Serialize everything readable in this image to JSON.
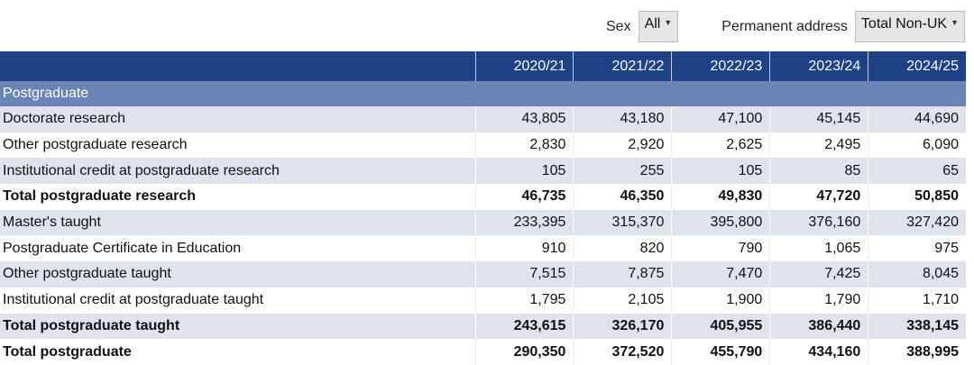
{
  "filters": {
    "sex": {
      "label": "Sex",
      "value": "All"
    },
    "permanent_address": {
      "label": "Permanent address",
      "value": "Total Non-UK"
    }
  },
  "table": {
    "columns": [
      "2020/21",
      "2021/22",
      "2022/23",
      "2023/24",
      "2024/25"
    ],
    "section": "Postgraduate",
    "rows": [
      {
        "label": "Doctorate research",
        "values": [
          "43,805",
          "43,180",
          "47,100",
          "45,145",
          "44,690"
        ],
        "bold": false
      },
      {
        "label": "Other postgraduate research",
        "values": [
          "2,830",
          "2,920",
          "2,625",
          "2,495",
          "6,090"
        ],
        "bold": false
      },
      {
        "label": "Institutional credit at postgraduate research",
        "values": [
          "105",
          "255",
          "105",
          "85",
          "65"
        ],
        "bold": false
      },
      {
        "label": "Total postgraduate research",
        "values": [
          "46,735",
          "46,350",
          "49,830",
          "47,720",
          "50,850"
        ],
        "bold": true
      },
      {
        "label": "Master's taught",
        "values": [
          "233,395",
          "315,370",
          "395,800",
          "376,160",
          "327,420"
        ],
        "bold": false
      },
      {
        "label": "Postgraduate Certificate in Education",
        "values": [
          "910",
          "820",
          "790",
          "1,065",
          "975"
        ],
        "bold": false
      },
      {
        "label": "Other postgraduate taught",
        "values": [
          "7,515",
          "7,875",
          "7,470",
          "7,425",
          "8,045"
        ],
        "bold": false
      },
      {
        "label": "Institutional credit at postgraduate taught",
        "values": [
          "1,795",
          "2,105",
          "1,900",
          "1,790",
          "1,710"
        ],
        "bold": false
      },
      {
        "label": "Total postgraduate taught",
        "values": [
          "243,615",
          "326,170",
          "405,955",
          "386,440",
          "338,145"
        ],
        "bold": true
      },
      {
        "label": "Total postgraduate",
        "values": [
          "290,350",
          "372,520",
          "455,790",
          "434,160",
          "388,995"
        ],
        "bold": true
      }
    ]
  },
  "colors": {
    "header": "#1f4287",
    "section": "#6a84b6",
    "shade": "#dfe3ec"
  }
}
